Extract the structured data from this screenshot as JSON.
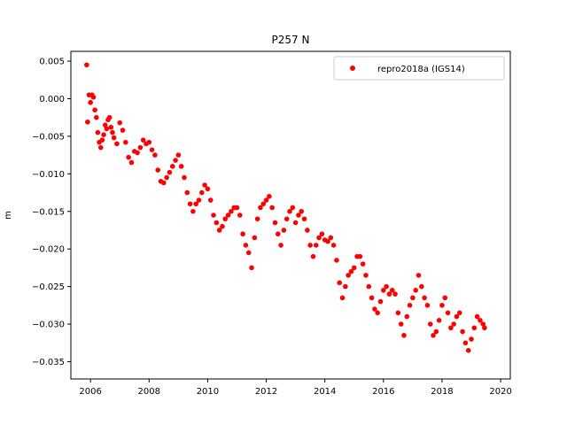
{
  "chart_data": {
    "type": "scatter",
    "title": "P257 N",
    "xlabel": "",
    "ylabel": "m",
    "xlim": [
      2005.33,
      2020.33
    ],
    "ylim": [
      -0.0373,
      0.0063
    ],
    "xticks": [
      2006,
      2008,
      2010,
      2012,
      2014,
      2016,
      2018,
      2020
    ],
    "xtick_labels": [
      "2006",
      "2008",
      "2010",
      "2012",
      "2014",
      "2016",
      "2018",
      "2020"
    ],
    "yticks": [
      0.005,
      0.0,
      -0.005,
      -0.01,
      -0.015,
      -0.02,
      -0.025,
      -0.03,
      -0.035
    ],
    "ytick_labels": [
      "0.005",
      "0.000",
      "−0.005",
      "−0.010",
      "−0.015",
      "−0.020",
      "−0.025",
      "−0.030",
      "−0.035"
    ],
    "grid": false,
    "legend_position": "top-right",
    "series": [
      {
        "name": "repro2018a (IGS14)",
        "color": "#ff0000",
        "marker": "circle",
        "x": [
          2005.87,
          2005.9,
          2005.95,
          2006.0,
          2006.05,
          2006.1,
          2006.15,
          2006.2,
          2006.25,
          2006.3,
          2006.35,
          2006.4,
          2006.45,
          2006.5,
          2006.55,
          2006.6,
          2006.65,
          2006.7,
          2006.75,
          2006.8,
          2006.9,
          2007.0,
          2007.1,
          2007.2,
          2007.3,
          2007.4,
          2007.5,
          2007.6,
          2007.7,
          2007.8,
          2007.9,
          2008.0,
          2008.1,
          2008.2,
          2008.3,
          2008.4,
          2008.5,
          2008.6,
          2008.7,
          2008.8,
          2008.9,
          2009.0,
          2009.1,
          2009.2,
          2009.3,
          2009.4,
          2009.5,
          2009.6,
          2009.7,
          2009.8,
          2009.9,
          2010.0,
          2010.1,
          2010.2,
          2010.3,
          2010.4,
          2010.5,
          2010.6,
          2010.7,
          2010.8,
          2010.9,
          2011.0,
          2011.1,
          2011.2,
          2011.3,
          2011.4,
          2011.5,
          2011.6,
          2011.7,
          2011.8,
          2011.9,
          2012.0,
          2012.1,
          2012.2,
          2012.3,
          2012.4,
          2012.5,
          2012.6,
          2012.7,
          2012.8,
          2012.9,
          2013.0,
          2013.1,
          2013.2,
          2013.3,
          2013.4,
          2013.5,
          2013.6,
          2013.7,
          2013.8,
          2013.9,
          2014.0,
          2014.1,
          2014.2,
          2014.3,
          2014.4,
          2014.5,
          2014.6,
          2014.7,
          2014.8,
          2014.9,
          2015.0,
          2015.1,
          2015.2,
          2015.3,
          2015.4,
          2015.5,
          2015.6,
          2015.7,
          2015.8,
          2015.9,
          2016.0,
          2016.1,
          2016.2,
          2016.3,
          2016.4,
          2016.5,
          2016.6,
          2016.7,
          2016.8,
          2016.9,
          2017.0,
          2017.1,
          2017.2,
          2017.3,
          2017.4,
          2017.5,
          2017.6,
          2017.7,
          2017.8,
          2017.9,
          2018.0,
          2018.1,
          2018.2,
          2018.3,
          2018.4,
          2018.5,
          2018.6,
          2018.7,
          2018.8,
          2018.9,
          2019.0,
          2019.1,
          2019.2,
          2019.3,
          2019.4,
          2019.45
        ],
        "y": [
          0.0045,
          -0.0031,
          0.0005,
          -0.0005,
          0.0005,
          0.0002,
          -0.0015,
          -0.0025,
          -0.0045,
          -0.0058,
          -0.0065,
          -0.0055,
          -0.0048,
          -0.0035,
          -0.004,
          -0.0028,
          -0.0025,
          -0.0038,
          -0.0045,
          -0.0052,
          -0.006,
          -0.0032,
          -0.0042,
          -0.0058,
          -0.0078,
          -0.0085,
          -0.007,
          -0.0072,
          -0.0065,
          -0.0055,
          -0.006,
          -0.0058,
          -0.0068,
          -0.0075,
          -0.0095,
          -0.011,
          -0.0112,
          -0.0105,
          -0.0098,
          -0.009,
          -0.0082,
          -0.0075,
          -0.009,
          -0.0105,
          -0.0125,
          -0.014,
          -0.015,
          -0.014,
          -0.0135,
          -0.0125,
          -0.0115,
          -0.012,
          -0.0135,
          -0.0155,
          -0.0165,
          -0.0175,
          -0.017,
          -0.016,
          -0.0155,
          -0.015,
          -0.0145,
          -0.0145,
          -0.0155,
          -0.018,
          -0.0195,
          -0.0205,
          -0.0225,
          -0.0185,
          -0.016,
          -0.0145,
          -0.014,
          -0.0135,
          -0.013,
          -0.0145,
          -0.0165,
          -0.018,
          -0.0195,
          -0.0175,
          -0.016,
          -0.015,
          -0.0145,
          -0.0165,
          -0.0155,
          -0.015,
          -0.016,
          -0.0175,
          -0.0195,
          -0.021,
          -0.0195,
          -0.0185,
          -0.018,
          -0.0188,
          -0.019,
          -0.0185,
          -0.0195,
          -0.0215,
          -0.0245,
          -0.0265,
          -0.025,
          -0.0235,
          -0.023,
          -0.0225,
          -0.021,
          -0.021,
          -0.022,
          -0.0235,
          -0.025,
          -0.0265,
          -0.028,
          -0.0285,
          -0.027,
          -0.0255,
          -0.025,
          -0.026,
          -0.0255,
          -0.026,
          -0.0285,
          -0.03,
          -0.0315,
          -0.029,
          -0.0275,
          -0.0265,
          -0.0255,
          -0.0235,
          -0.025,
          -0.0265,
          -0.0275,
          -0.03,
          -0.0315,
          -0.031,
          -0.0295,
          -0.0275,
          -0.0265,
          -0.0285,
          -0.0305,
          -0.03,
          -0.029,
          -0.0285,
          -0.031,
          -0.0325,
          -0.0335,
          -0.032,
          -0.0305,
          -0.029,
          -0.0295,
          -0.03,
          -0.0305
        ]
      }
    ]
  }
}
